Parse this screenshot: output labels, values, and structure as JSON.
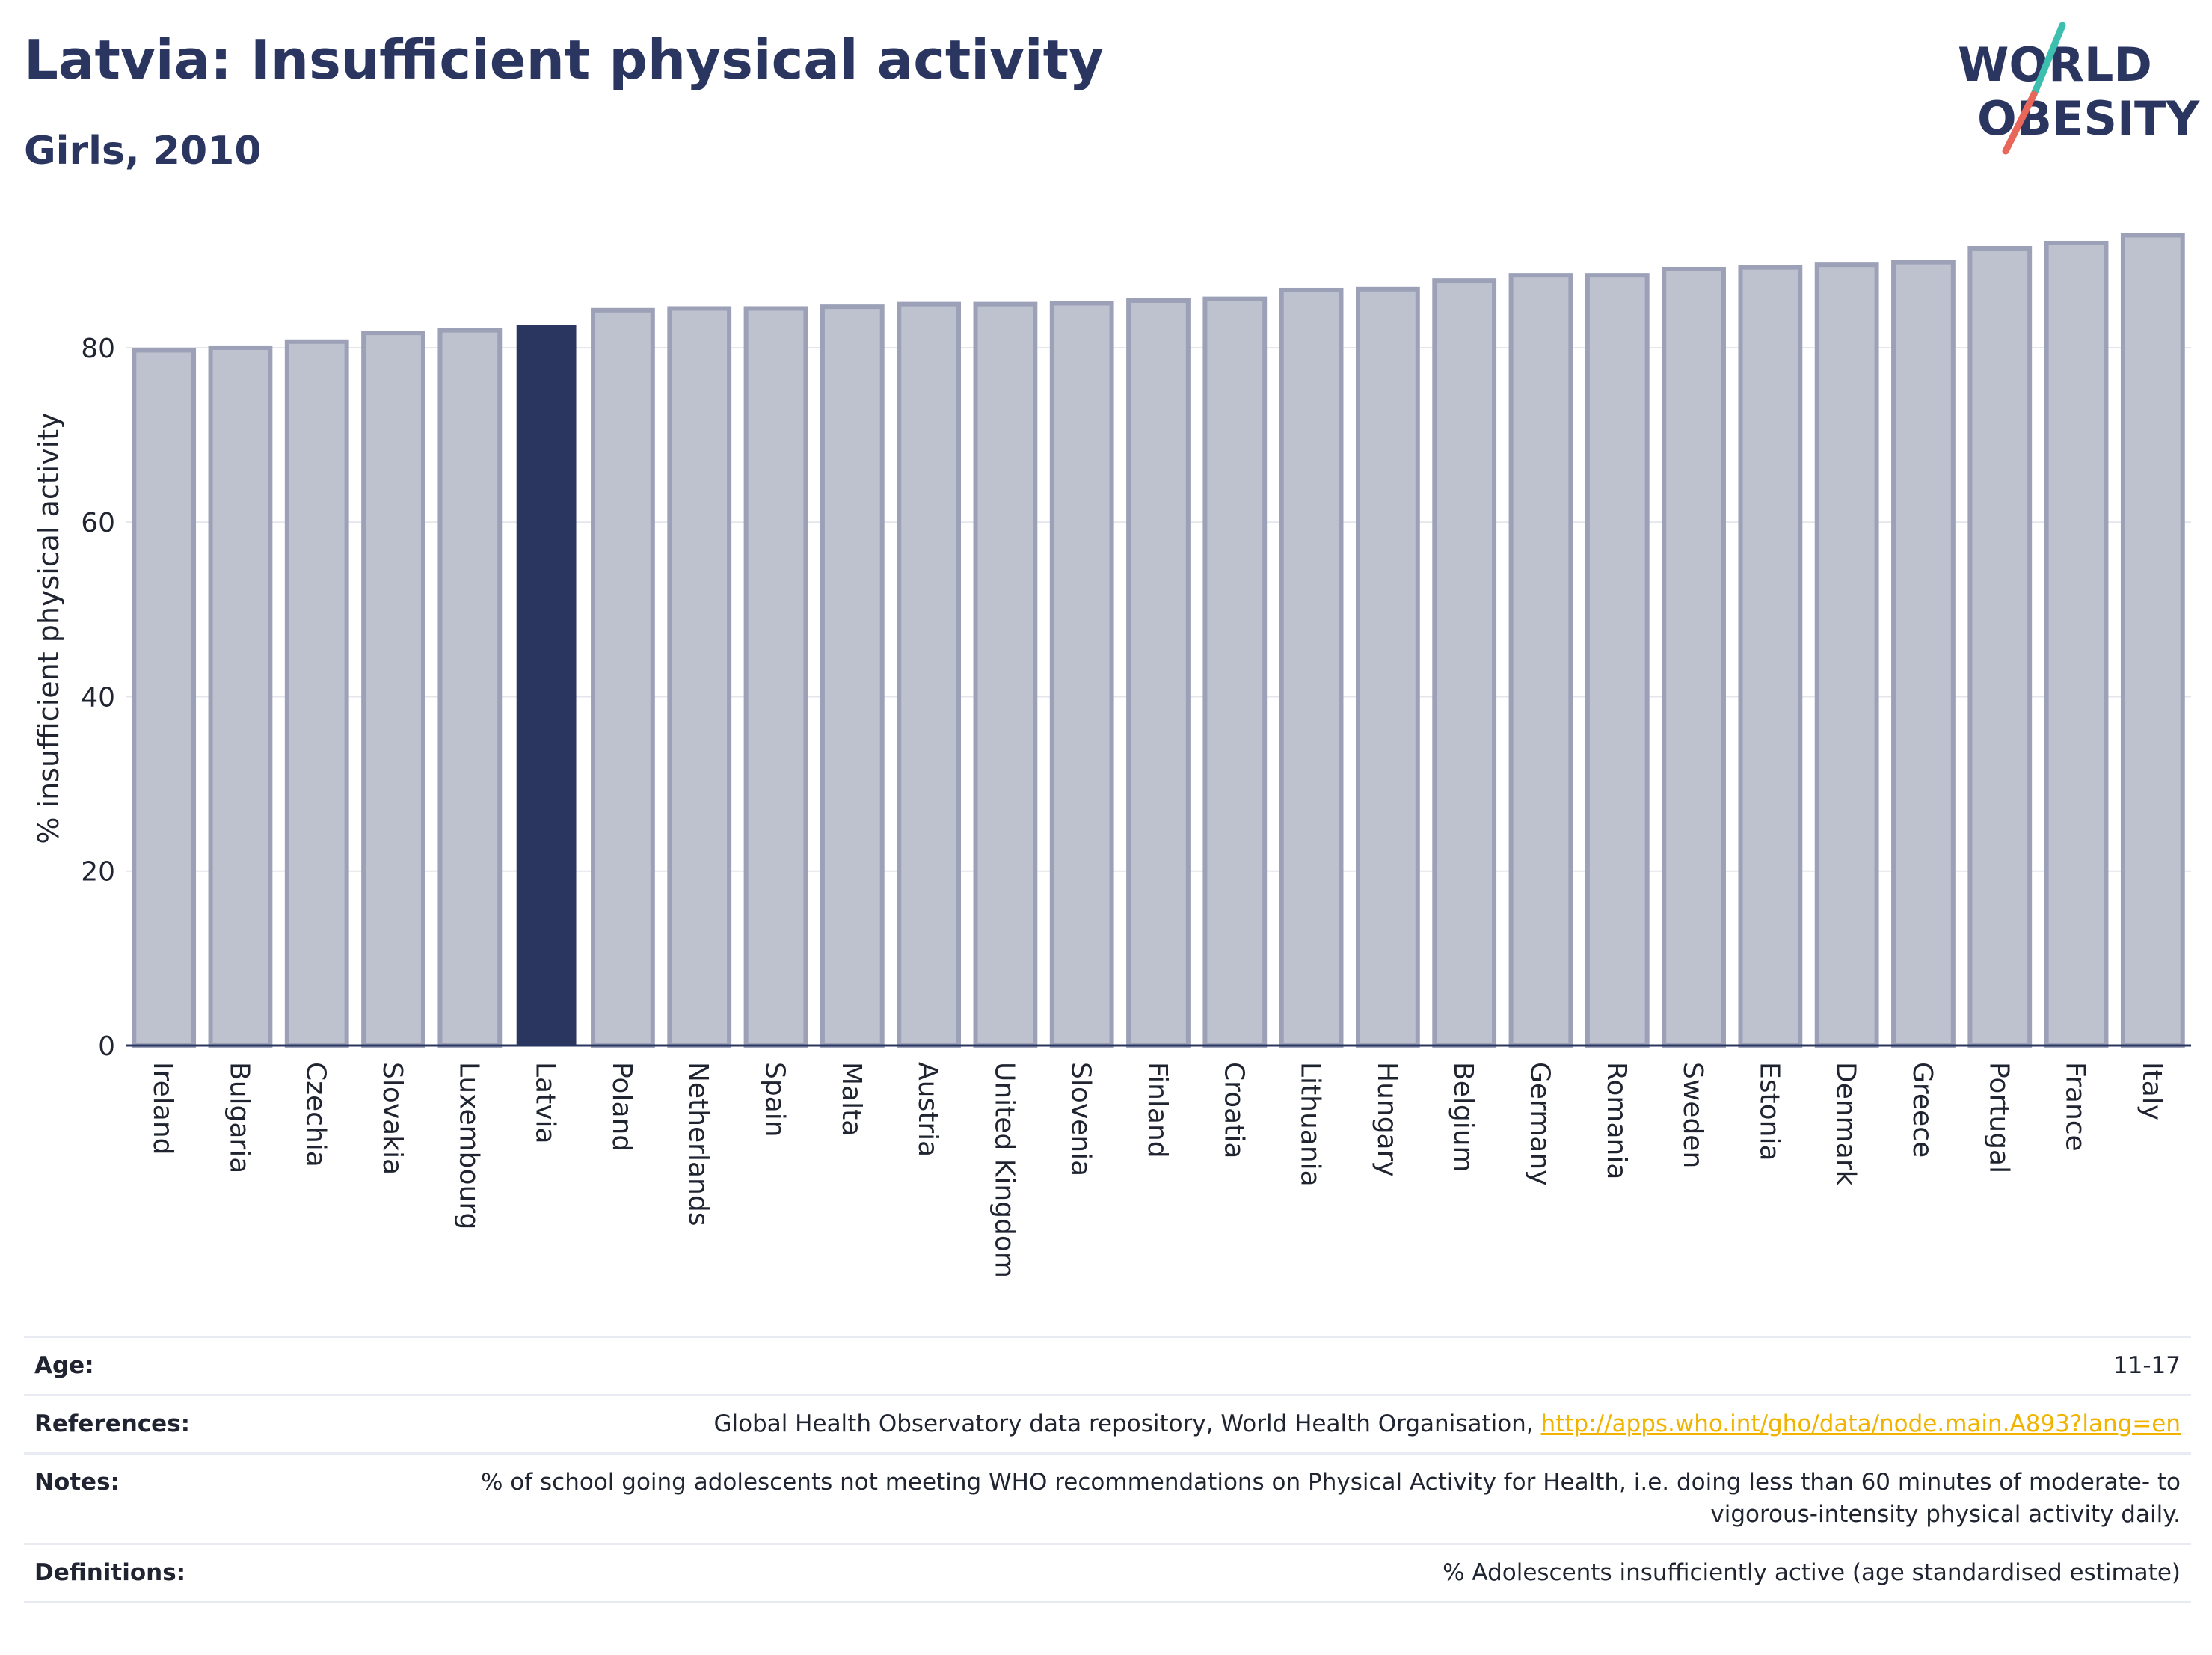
{
  "header": {
    "title": "Latvia: Insufficient physical activity",
    "subtitle": "Girls, 2010"
  },
  "logo": {
    "line1": "WORLD",
    "line2": "OBESITY"
  },
  "chart_data": {
    "type": "bar",
    "ylabel": "% insufficient physical activity",
    "xlabel": "",
    "ylim": [
      0,
      95
    ],
    "yticks": [
      0,
      20,
      40,
      60,
      80
    ],
    "grid": true,
    "highlight": "Latvia",
    "categories": [
      "Ireland",
      "Bulgaria",
      "Czechia",
      "Slovakia",
      "Luxembourg",
      "Latvia",
      "Poland",
      "Netherlands",
      "Spain",
      "Malta",
      "Austria",
      "United Kingdom",
      "Slovenia",
      "Finland",
      "Croatia",
      "Lithuania",
      "Hungary",
      "Belgium",
      "Germany",
      "Romania",
      "Sweden",
      "Estonia",
      "Denmark",
      "Greece",
      "Portugal",
      "France",
      "Italy"
    ],
    "values": [
      79.7,
      80.0,
      80.7,
      81.7,
      82.0,
      82.6,
      84.3,
      84.5,
      84.5,
      84.7,
      85.0,
      85.0,
      85.1,
      85.4,
      85.6,
      86.6,
      86.7,
      87.7,
      88.3,
      88.3,
      89.0,
      89.2,
      89.5,
      89.8,
      91.4,
      92.0,
      92.9
    ],
    "colors": {
      "bar": "#bec1ce",
      "bar_border": "#9ca1b8",
      "highlight": "#2a3560",
      "grid": "#e4e6ec",
      "axis": "#2a3560"
    }
  },
  "info": {
    "age": {
      "label": "Age:",
      "value": "11-17"
    },
    "references": {
      "label": "References:",
      "text": "Global Health Observatory data repository, World Health Organisation, ",
      "link": "http://apps.who.int/gho/data/node.main.A893?lang=en"
    },
    "notes": {
      "label": "Notes:",
      "value": "% of school going adolescents not meeting WHO recommendations on Physical Activity for Health, i.e. doing less than 60 minutes of moderate- to vigorous-intensity physical activity daily."
    },
    "definitions": {
      "label": "Definitions:",
      "value": "% Adolescents insufficiently active (age standardised estimate)"
    }
  }
}
